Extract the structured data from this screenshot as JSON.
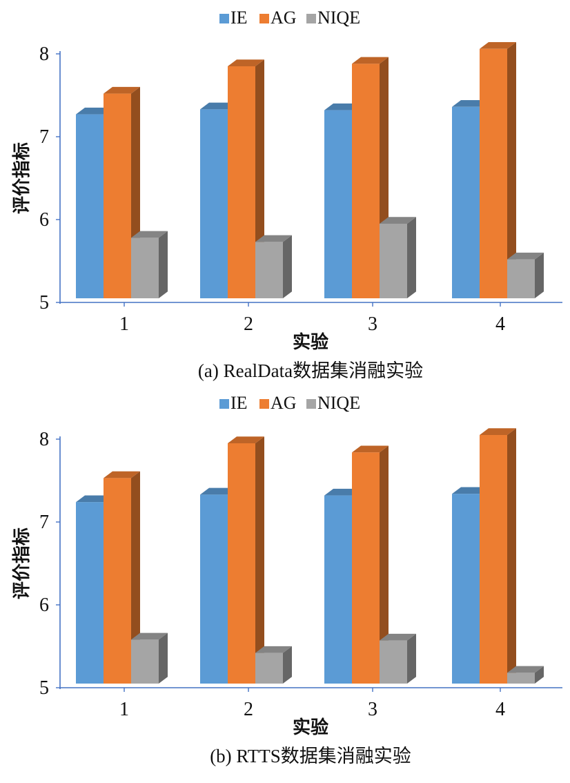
{
  "colors": {
    "IE": "#5b9bd5",
    "AG": "#ed7d31",
    "NIQE": "#a5a5a5"
  },
  "chart_data": [
    {
      "type": "bar",
      "caption": "(a) RealData数据集消融实验",
      "xlabel": "实验",
      "ylabel": "评价指标",
      "categories": [
        "1",
        "2",
        "3",
        "4"
      ],
      "ylim": [
        5,
        8
      ],
      "yticks": [
        "5",
        "6",
        "7",
        "8"
      ],
      "legend": [
        "IE",
        "AG",
        "NIQE"
      ],
      "series": [
        {
          "name": "IE",
          "values": [
            7.27,
            7.33,
            7.32,
            7.36
          ]
        },
        {
          "name": "AG",
          "values": [
            7.52,
            7.85,
            7.88,
            8.06
          ]
        },
        {
          "name": "NIQE",
          "values": [
            5.78,
            5.73,
            5.95,
            5.52
          ]
        }
      ]
    },
    {
      "type": "bar",
      "caption": "(b) RTTS数据集消融实验",
      "xlabel": "实验",
      "ylabel": "评价指标",
      "categories": [
        "1",
        "2",
        "3",
        "4"
      ],
      "ylim": [
        5,
        8
      ],
      "yticks": [
        "5",
        "6",
        "7",
        "8"
      ],
      "legend": [
        "IE",
        "AG",
        "NIQE"
      ],
      "series": [
        {
          "name": "IE",
          "values": [
            7.24,
            7.33,
            7.32,
            7.34
          ]
        },
        {
          "name": "AG",
          "values": [
            7.53,
            7.95,
            7.84,
            8.05
          ]
        },
        {
          "name": "NIQE",
          "values": [
            5.58,
            5.42,
            5.57,
            5.18
          ]
        }
      ]
    }
  ]
}
